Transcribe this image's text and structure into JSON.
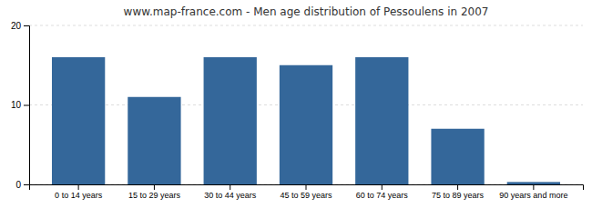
{
  "chart_data": {
    "type": "bar",
    "title": "www.map-france.com - Men age distribution of Pessoulens in 2007",
    "categories": [
      "0 to 14 years",
      "15 to 29 years",
      "30 to 44 years",
      "45 to 59 years",
      "60 to 74 years",
      "75 to 89 years",
      "90 years and more"
    ],
    "values": [
      16,
      11,
      16,
      15,
      16,
      7,
      0.3
    ],
    "color": "#34679a",
    "ylim": [
      0,
      20
    ],
    "yticks": [
      0,
      10,
      20
    ],
    "grid": true
  }
}
